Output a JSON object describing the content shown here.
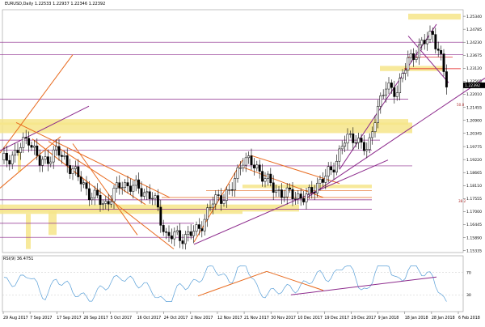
{
  "chart_title": {
    "symbol": "EURUSD,Daily",
    "ohlc": "1.22533 1.22937 1.22346 1.22392"
  },
  "indicator_label": "RSI(9) 36.4751",
  "colors": {
    "background": "#ffffff",
    "grid": "#c8c8c8",
    "candle": "#000000",
    "zone": "#f6e58a",
    "orange": "#e86a1e",
    "purple": "#8c2a8c",
    "red": "#e01010",
    "rsi_line": "#5aa0d8"
  },
  "chart_data": {
    "type": "candlestick",
    "price_axis": [
      "1.25340",
      "1.24785",
      "1.24230",
      "1.23675",
      "1.23120",
      "1.22565",
      "1.22010",
      "1.21455",
      "1.20900",
      "1.20345",
      "1.19775",
      "1.19220",
      "1.18665",
      "1.18110",
      "1.17555",
      "1.17000",
      "1.16445",
      "1.15890",
      "1.15335"
    ],
    "price_range": [
      1.1525,
      1.2562
    ],
    "current_price_label": "1.22392",
    "date_axis": [
      "29 Aug 2017",
      "7 Sep 2017",
      "17 Sep 2017",
      "26 Sep 2017",
      "5 Oct 2017",
      "16 Oct 2017",
      "24 Oct 2017",
      "2 Nov 2017",
      "12 Nov 2017",
      "21 Nov 2017",
      "30 Nov 2017",
      "10 Dec 2017",
      "19 Dec 2017",
      "29 Dec 2017",
      "9 Jan 2018",
      "18 Jan 2018",
      "28 Jan 2018",
      "6 Feb 2018"
    ],
    "fib_labels": [
      "50.0",
      "38.2"
    ],
    "indicator_axis": [
      "70",
      "30"
    ],
    "indicator_range": [
      0,
      100
    ]
  }
}
